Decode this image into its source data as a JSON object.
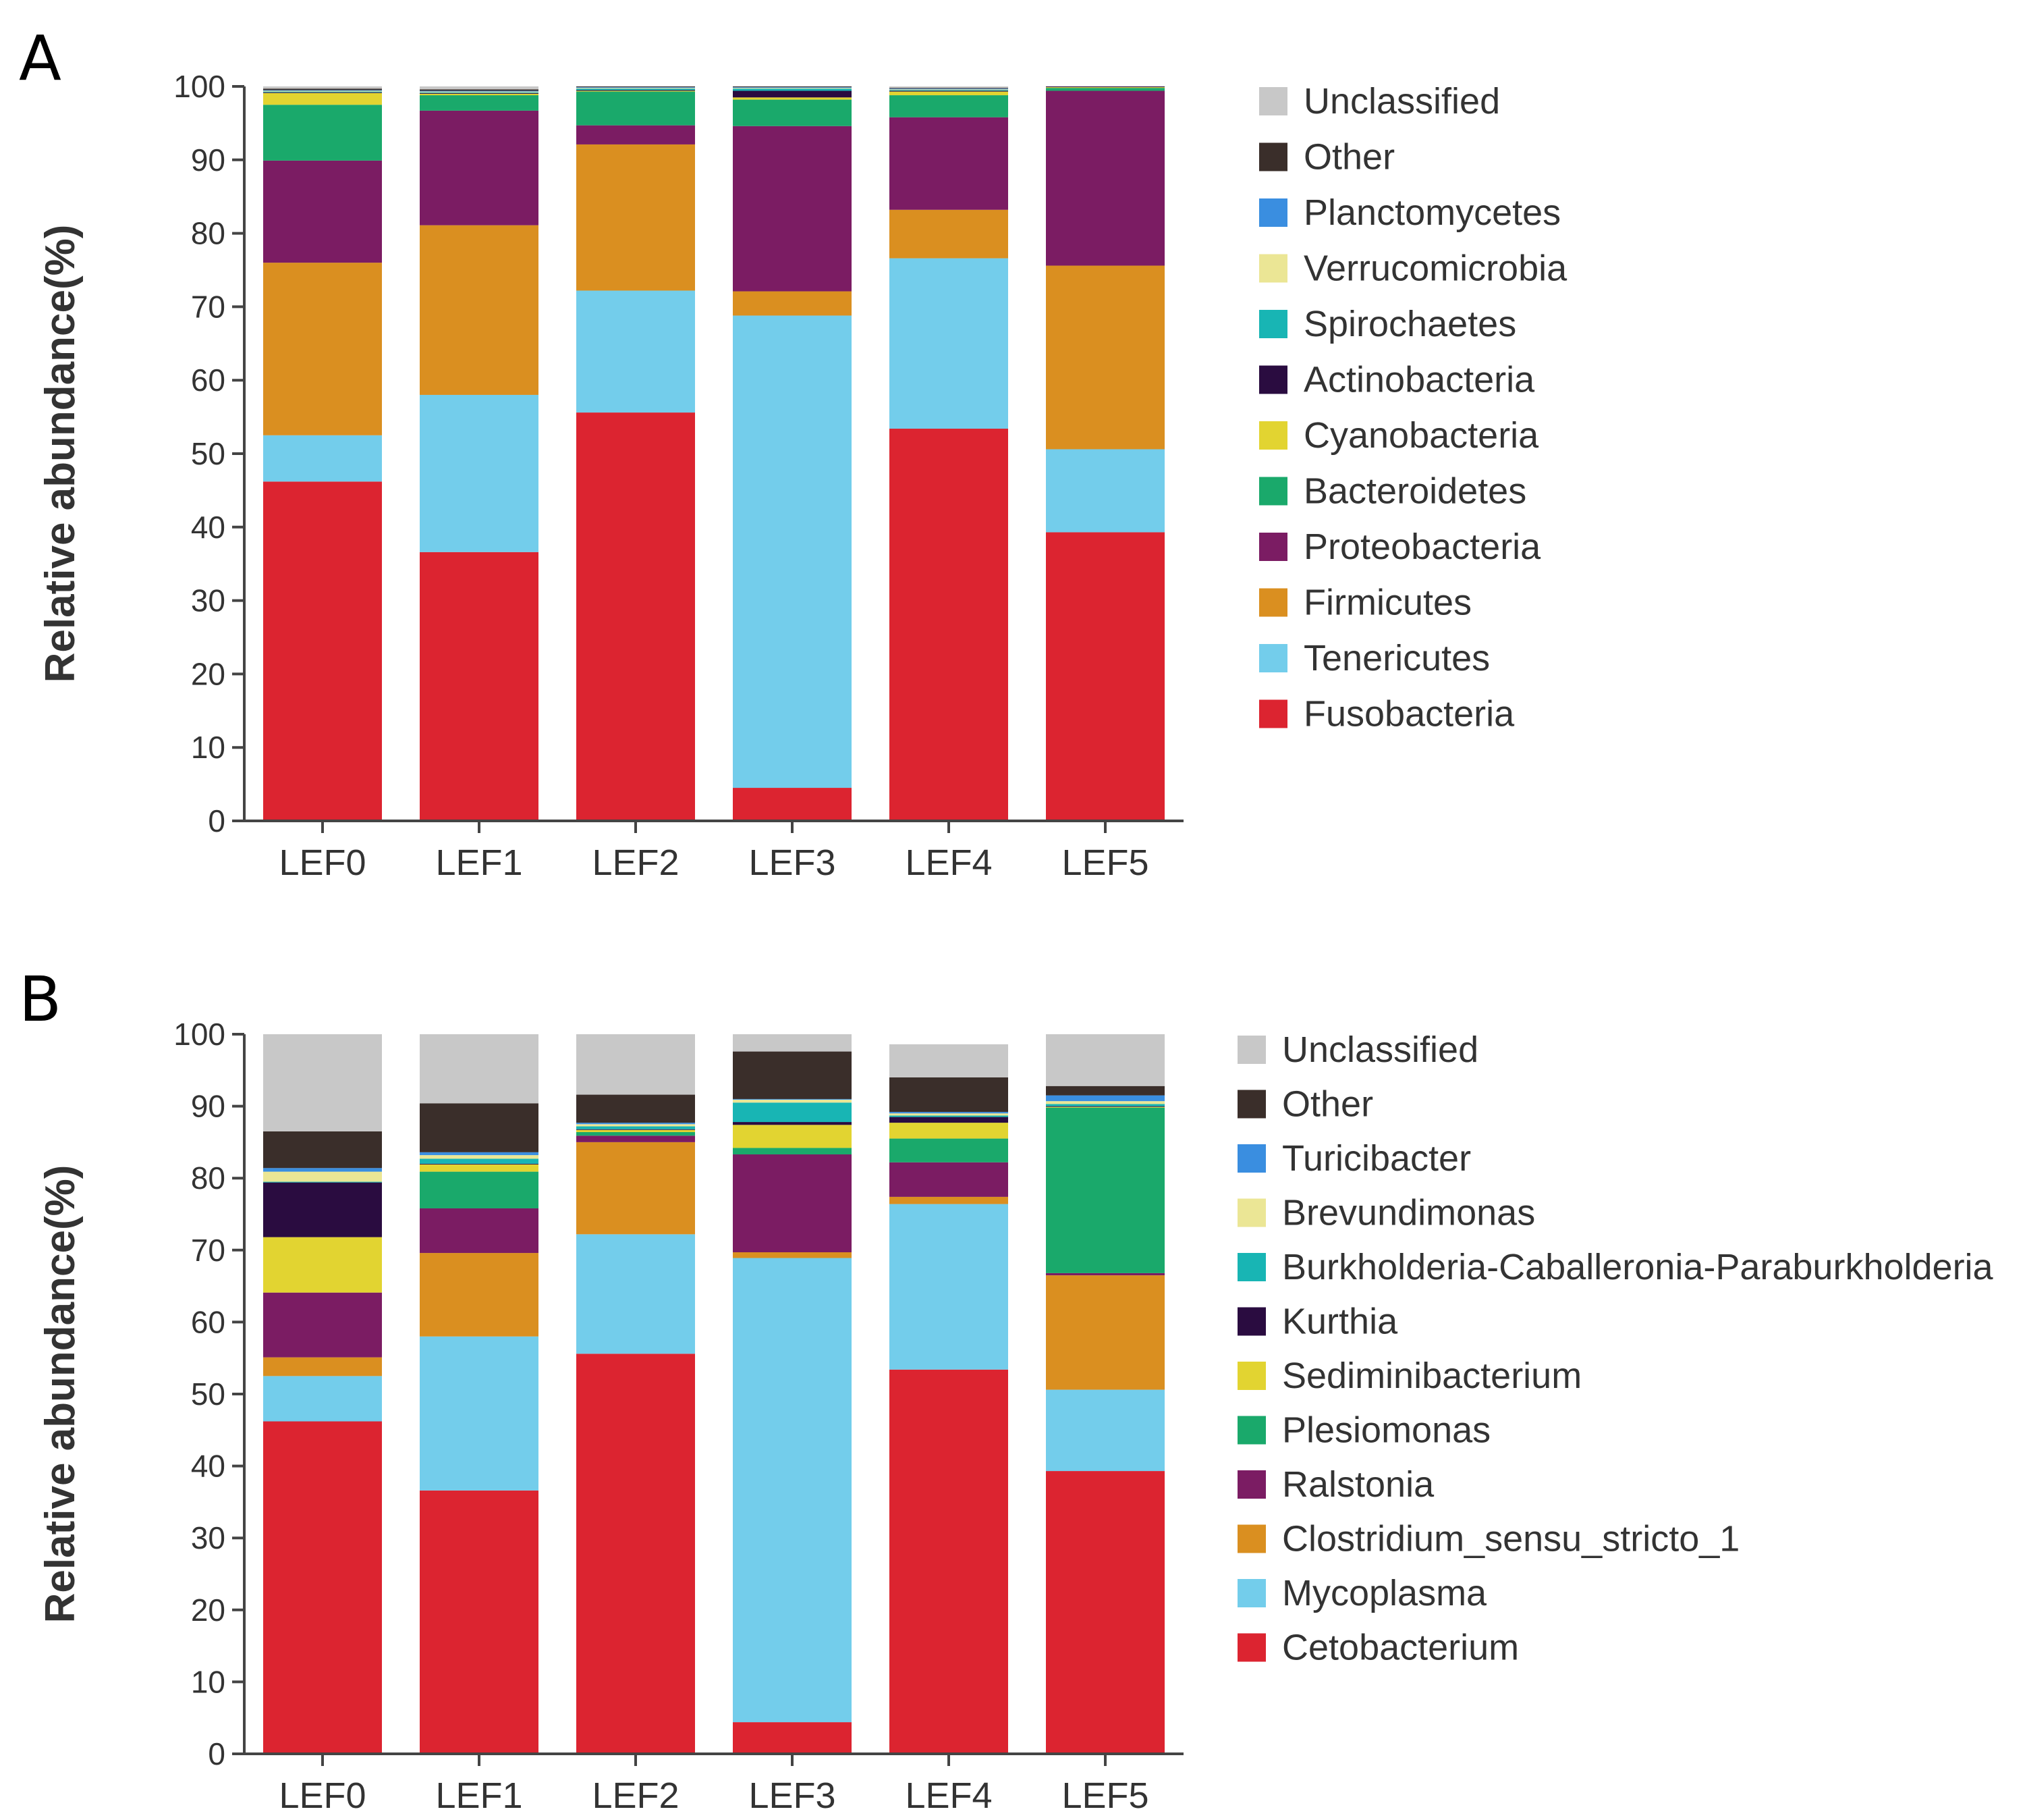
{
  "chart_data": [
    {
      "panel": "A",
      "type": "bar",
      "stacked": true,
      "ylabel": "Relative abundance(%)",
      "ylim": [
        0,
        100
      ],
      "yticks": [
        0,
        10,
        20,
        30,
        40,
        50,
        60,
        70,
        80,
        90,
        100
      ],
      "categories": [
        "LEF0",
        "LEF1",
        "LEF2",
        "LEF3",
        "LEF4",
        "LEF5"
      ],
      "legend_position": "right",
      "series": [
        {
          "name": "Fusobacteria",
          "color": "#dc2430",
          "values": [
            46.2,
            36.6,
            55.6,
            4.5,
            53.4,
            39.3
          ]
        },
        {
          "name": "Tenericutes",
          "color": "#73cdeb",
          "values": [
            6.3,
            21.4,
            16.6,
            64.3,
            23.2,
            11.3
          ]
        },
        {
          "name": "Firmicutes",
          "color": "#da8f20",
          "values": [
            23.5,
            23.1,
            19.9,
            3.3,
            6.6,
            25.0
          ]
        },
        {
          "name": "Proteobacteria",
          "color": "#7b1c63",
          "values": [
            13.9,
            15.6,
            2.6,
            22.5,
            12.6,
            23.8
          ]
        },
        {
          "name": "Bacteroidetes",
          "color": "#1aa96b",
          "values": [
            7.6,
            2.1,
            4.6,
            3.6,
            3.0,
            0.4
          ]
        },
        {
          "name": "Cyanobacteria",
          "color": "#e2d431",
          "values": [
            1.6,
            0.2,
            0.1,
            0.3,
            0.5,
            0.1
          ]
        },
        {
          "name": "Actinobacteria",
          "color": "#2a0c40",
          "values": [
            0.1,
            0.1,
            0.1,
            0.9,
            0.1,
            0.1
          ]
        },
        {
          "name": "Spirochaetes",
          "color": "#18b5b4",
          "values": [
            0.1,
            0.1,
            0.2,
            0.3,
            0.1,
            0.1
          ]
        },
        {
          "name": "Verrucomicrobia",
          "color": "#ebe695",
          "values": [
            0.1,
            0.1,
            0.1,
            0.1,
            0.1,
            0.1
          ]
        },
        {
          "name": "Planctomycetes",
          "color": "#3a8ee0",
          "values": [
            0.1,
            0.1,
            0.1,
            0.1,
            0.1,
            0.1
          ]
        },
        {
          "name": "Other",
          "color": "#3a2e2a",
          "values": [
            0.2,
            0.2,
            0.1,
            0.3,
            0.1,
            0.2
          ]
        },
        {
          "name": "Unclassified",
          "color": "#c8c8c8",
          "values": [
            0.3,
            0.4,
            0.4,
            0.3,
            0.4,
            0.5
          ]
        }
      ]
    },
    {
      "panel": "B",
      "type": "bar",
      "stacked": true,
      "ylabel": "Relative abundance(%)",
      "ylim": [
        0,
        100
      ],
      "yticks": [
        0,
        10,
        20,
        30,
        40,
        50,
        60,
        70,
        80,
        90,
        100
      ],
      "categories": [
        "LEF0",
        "LEF1",
        "LEF2",
        "LEF3",
        "LEF4",
        "LEF5"
      ],
      "legend_position": "right",
      "series": [
        {
          "name": "Cetobacterium",
          "color": "#dc2430",
          "values": [
            46.2,
            36.6,
            55.6,
            4.4,
            53.4,
            39.3
          ]
        },
        {
          "name": "Mycoplasma",
          "color": "#73cdeb",
          "values": [
            6.3,
            21.4,
            16.6,
            64.5,
            23.0,
            11.3
          ]
        },
        {
          "name": "Clostridium_sensu_stricto_1",
          "color": "#da8f20",
          "values": [
            2.6,
            11.6,
            12.8,
            0.8,
            1.0,
            15.9
          ]
        },
        {
          "name": "Ralstonia",
          "color": "#7b1c63",
          "values": [
            9.0,
            6.2,
            0.9,
            13.6,
            4.8,
            0.3
          ]
        },
        {
          "name": "Plesiomonas",
          "color": "#1aa96b",
          "values": [
            0.0,
            5.1,
            0.5,
            0.9,
            3.3,
            23.0
          ]
        },
        {
          "name": "Sediminibacterium",
          "color": "#e2d431",
          "values": [
            7.7,
            1.0,
            0.3,
            3.2,
            2.2,
            0.1
          ]
        },
        {
          "name": "Kurthia",
          "color": "#2a0c40",
          "values": [
            7.6,
            0.1,
            0.1,
            0.4,
            0.8,
            0.1
          ]
        },
        {
          "name": "Burkholderia-Caballeronia-Paraburkholderia",
          "color": "#18b5b4",
          "values": [
            0.1,
            0.7,
            0.4,
            2.7,
            0.2,
            0.3
          ]
        },
        {
          "name": "Brevundimonas",
          "color": "#ebe695",
          "values": [
            1.4,
            0.5,
            0.3,
            0.4,
            0.3,
            0.4
          ]
        },
        {
          "name": "Turicibacter",
          "color": "#3a8ee0",
          "values": [
            0.5,
            0.4,
            0.2,
            0.1,
            0.2,
            0.8
          ]
        },
        {
          "name": "Other",
          "color": "#3a2e2a",
          "values": [
            5.1,
            6.8,
            3.9,
            6.6,
            4.8,
            1.3
          ]
        },
        {
          "name": "Unclassified",
          "color": "#c8c8c8",
          "values": [
            13.5,
            9.6,
            8.4,
            2.4,
            4.6,
            7.3
          ]
        }
      ]
    }
  ],
  "panel_labels": [
    "A",
    "B"
  ]
}
